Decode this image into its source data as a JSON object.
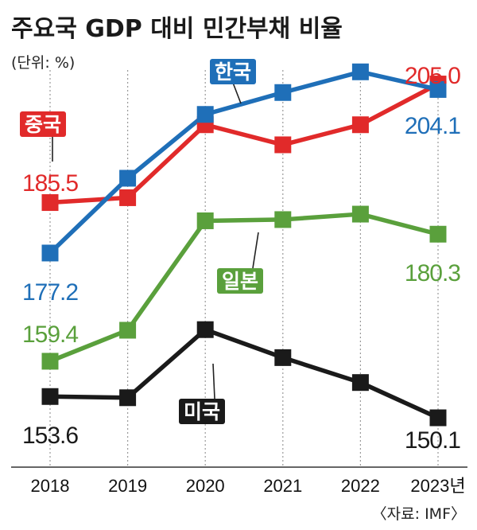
{
  "title": "주요국 GDP 대비 민간부채 비율",
  "unit": "(단위: %)",
  "source": "〈자료: IMF〉",
  "chart_data": {
    "type": "line",
    "title": "주요국 GDP 대비 민간부채 비율",
    "unit": "(단위: %)",
    "categories": [
      "2018",
      "2019",
      "2020",
      "2021",
      "2022",
      "2023년"
    ],
    "grid": "vertical dotted",
    "series": [
      {
        "name": "한국",
        "color": "#1f6fb8",
        "values": [
          177.2,
          189.5,
          200.0,
          203.6,
          207.0,
          204.1
        ]
      },
      {
        "name": "중국",
        "color": "#e12a2a",
        "values": [
          185.5,
          186.3,
          198.3,
          195.0,
          198.3,
          205.0
        ]
      },
      {
        "name": "일본",
        "color": "#5aa03c",
        "values": [
          159.4,
          164.5,
          182.5,
          182.7,
          183.6,
          180.3
        ]
      },
      {
        "name": "미국",
        "color": "#1a1a1a",
        "values": [
          153.6,
          153.4,
          164.6,
          160.0,
          155.9,
          150.1
        ]
      }
    ],
    "value_labels": [
      {
        "series": "중국",
        "text": "185.5",
        "color": "#e12a2a"
      },
      {
        "series": "한국",
        "text": "177.2",
        "color": "#1f6fb8"
      },
      {
        "series": "일본",
        "text": "159.4",
        "color": "#5aa03c"
      },
      {
        "series": "미국",
        "text": "153.6",
        "color": "#1a1a1a"
      },
      {
        "series": "중국",
        "text": "205.0",
        "color": "#e12a2a"
      },
      {
        "series": "한국",
        "text": "204.1",
        "color": "#1f6fb8"
      },
      {
        "series": "일본",
        "text": "180.3",
        "color": "#5aa03c"
      },
      {
        "series": "미국",
        "text": "150.1",
        "color": "#1a1a1a"
      }
    ],
    "series_tags": [
      {
        "series": "한국",
        "text": "한국",
        "color": "#1f6fb8"
      },
      {
        "series": "중국",
        "text": "중국",
        "color": "#e12a2a"
      },
      {
        "series": "일본",
        "text": "일본",
        "color": "#5aa03c"
      },
      {
        "series": "미국",
        "text": "미국",
        "color": "#1a1a1a"
      }
    ]
  }
}
